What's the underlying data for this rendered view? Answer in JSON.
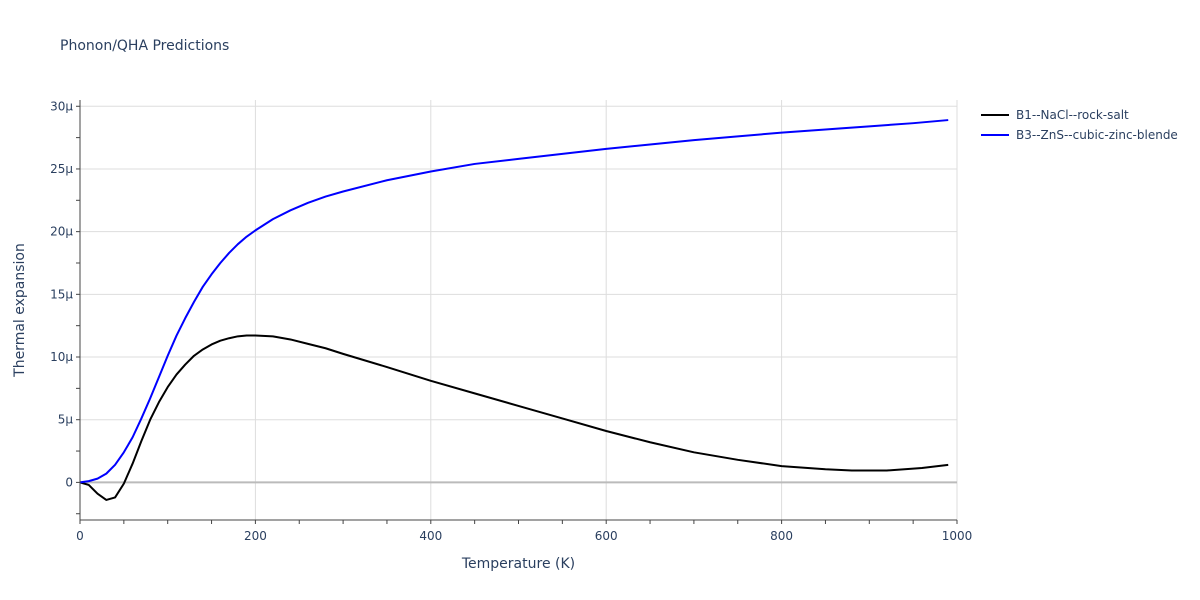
{
  "chart_data": {
    "type": "line",
    "title": "Phonon/QHA Predictions",
    "xlabel": "Temperature (K)",
    "ylabel": "Thermal expansion",
    "xlim": [
      0,
      1000
    ],
    "ylim": [
      -3e-06,
      3.05e-05
    ],
    "x_ticks": [
      0,
      200,
      400,
      600,
      800,
      1000
    ],
    "x_tick_labels": [
      "0",
      "200",
      "400",
      "600",
      "800",
      "1000"
    ],
    "y_ticks": [
      0,
      5e-06,
      1e-05,
      1.5e-05,
      2e-05,
      2.5e-05,
      3e-05
    ],
    "y_tick_labels": [
      "0",
      "5μ",
      "10μ",
      "15μ",
      "20μ",
      "25μ",
      "30μ"
    ],
    "grid": true,
    "legend": "outside-top-right",
    "series": [
      {
        "name": "B1--NaCl--rock-salt",
        "color": "#000000",
        "x": [
          0,
          10,
          20,
          30,
          40,
          50,
          60,
          70,
          80,
          90,
          100,
          110,
          120,
          130,
          140,
          150,
          160,
          170,
          180,
          190,
          200,
          220,
          240,
          260,
          280,
          300,
          350,
          400,
          450,
          500,
          550,
          600,
          650,
          700,
          750,
          800,
          850,
          880,
          920,
          960,
          990
        ],
        "y": [
          0,
          -2e-07,
          -9e-07,
          -1.4e-06,
          -1.2e-06,
          -1e-07,
          1.5e-06,
          3.3e-06,
          5e-06,
          6.4e-06,
          7.6e-06,
          8.6e-06,
          9.4e-06,
          1.01e-05,
          1.06e-05,
          1.1e-05,
          1.13e-05,
          1.15e-05,
          1.165e-05,
          1.172e-05,
          1.172e-05,
          1.165e-05,
          1.14e-05,
          1.105e-05,
          1.07e-05,
          1.025e-05,
          9.2e-06,
          8.1e-06,
          7.1e-06,
          6.1e-06,
          5.1e-06,
          4.1e-06,
          3.2e-06,
          2.4e-06,
          1.8e-06,
          1.3e-06,
          1.05e-06,
          9.5e-07,
          9.5e-07,
          1.15e-06,
          1.4e-06
        ]
      },
      {
        "name": "B3--ZnS--cubic-zinc-blende",
        "color": "#0000ff",
        "x": [
          0,
          10,
          20,
          30,
          40,
          50,
          60,
          70,
          80,
          90,
          100,
          110,
          120,
          130,
          140,
          150,
          160,
          170,
          180,
          190,
          200,
          220,
          240,
          260,
          280,
          300,
          350,
          400,
          450,
          500,
          550,
          600,
          650,
          700,
          750,
          800,
          850,
          900,
          950,
          990
        ],
        "y": [
          0,
          1e-07,
          3e-07,
          7e-07,
          1.4e-06,
          2.4e-06,
          3.6e-06,
          5.1e-06,
          6.7e-06,
          8.4e-06,
          1.01e-05,
          1.17e-05,
          1.31e-05,
          1.44e-05,
          1.56e-05,
          1.66e-05,
          1.75e-05,
          1.83e-05,
          1.9e-05,
          1.96e-05,
          2.01e-05,
          2.1e-05,
          2.17e-05,
          2.23e-05,
          2.28e-05,
          2.32e-05,
          2.41e-05,
          2.48e-05,
          2.54e-05,
          2.58e-05,
          2.62e-05,
          2.66e-05,
          2.695e-05,
          2.73e-05,
          2.76e-05,
          2.79e-05,
          2.815e-05,
          2.84e-05,
          2.865e-05,
          2.89e-05
        ]
      }
    ]
  }
}
